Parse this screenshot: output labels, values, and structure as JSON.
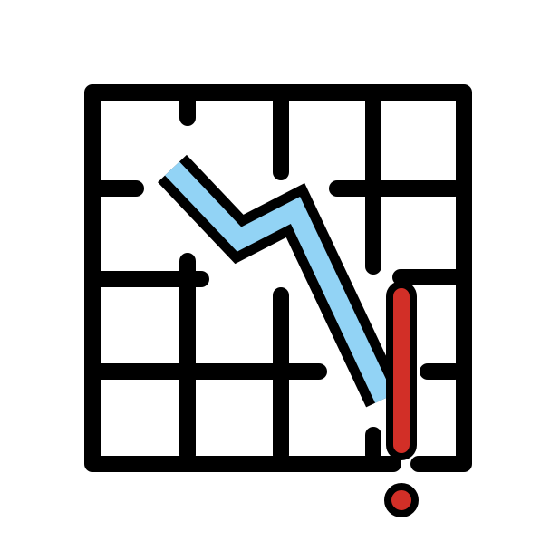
{
  "icon": {
    "name": "chart-decreasing-icon",
    "colors": {
      "outline": "#000000",
      "line_fill": "#92d3f5",
      "alert": "#d22f27",
      "background": "#ffffff"
    }
  }
}
